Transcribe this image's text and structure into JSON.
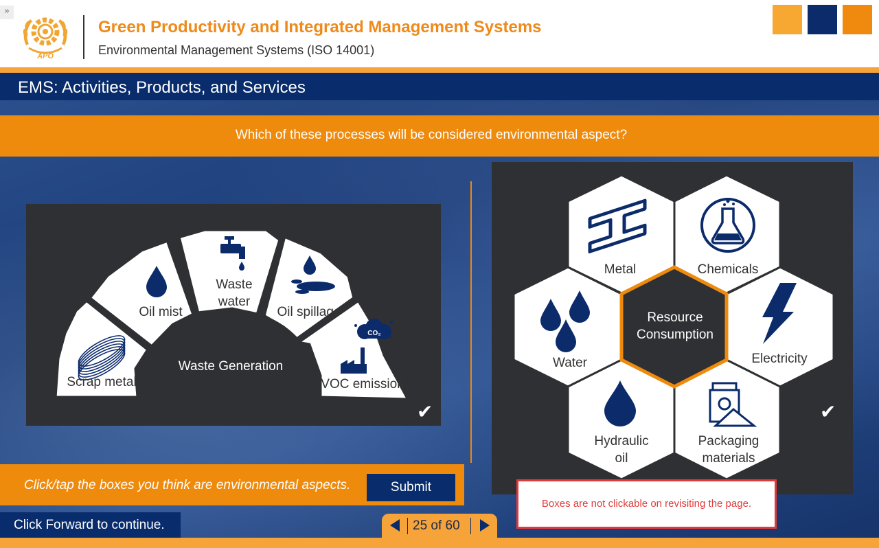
{
  "header": {
    "collapse_icon": "»",
    "logo_text": "APO",
    "course_title": "Green Productivity and Integrated Management Systems",
    "course_subtitle": "Environmental Management Systems (ISO 14001)"
  },
  "section_title": "EMS: Activities, Products, and Services",
  "question": "Which of these processes will be considered environmental aspect?",
  "waste_diagram": {
    "center_label": "Waste Generation",
    "segments": [
      {
        "label": "Scrap metal",
        "icon": "wire-coil-icon"
      },
      {
        "label": "Oil mist",
        "icon": "oil-drop-icon"
      },
      {
        "label_line1": "Waste",
        "label_line2": "water",
        "icon": "faucet-icon"
      },
      {
        "label": "Oil spillage",
        "icon": "oil-spill-icon"
      },
      {
        "label": "VOC emission",
        "icon": "factory-co2-icon",
        "co2": "CO₂"
      }
    ],
    "check": "✔"
  },
  "resource_diagram": {
    "center_line1": "Resource",
    "center_line2": "Consumption",
    "cells": [
      {
        "label": "Metal",
        "icon": "steel-beam-icon"
      },
      {
        "label": "Chemicals",
        "icon": "flask-icon"
      },
      {
        "label": "Water",
        "icon": "water-drops-icon"
      },
      {
        "label": "Electricity",
        "icon": "lightning-icon"
      },
      {
        "label_line1": "Hydraulic",
        "label_line2": "oil",
        "icon": "oil-drop-icon"
      },
      {
        "label_line1": "Packaging",
        "label_line2": "materials",
        "icon": "package-icon"
      }
    ],
    "check": "✔"
  },
  "instruction": "Click/tap the boxes you think are environmental aspects.",
  "submit_label": "Submit",
  "continue_text": "Click Forward to continue.",
  "pager": {
    "indicator": "25 of 60"
  },
  "notice": "Boxes are not clickable on revisiting the page.",
  "colors": {
    "orange": "#ee8a0c",
    "light_orange": "#f6a43a",
    "navy": "#082c6c",
    "panel": "#2f3033",
    "icon_navy": "#0b2b6b",
    "alert_red": "#e03a3a"
  }
}
